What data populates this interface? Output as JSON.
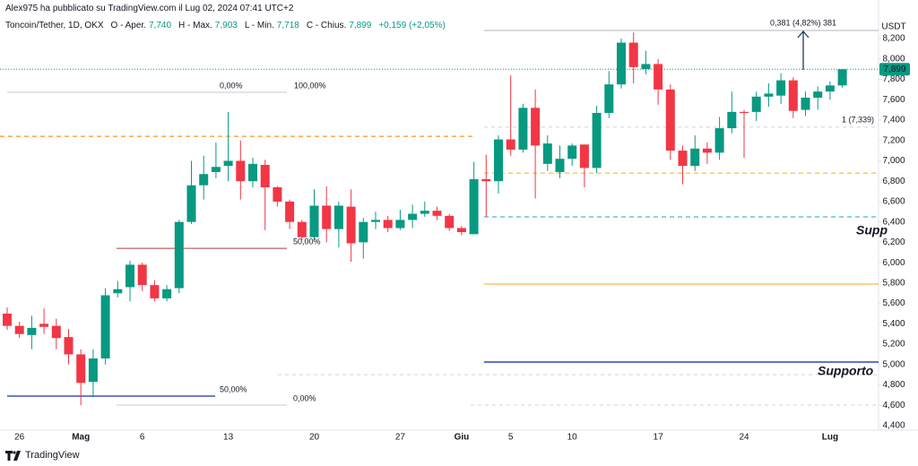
{
  "header": {
    "author": "Alex975 ha pubblicato su TradingView.com il Lug 02, 2024 07:41 UTC+2",
    "legend": [
      "Toncoin/Tether, 1D, OKX",
      "O - Aper.",
      "7,740",
      "H - Max.",
      "7,903",
      "L - Min.",
      "7,718",
      "C - Chius.",
      "7,899",
      "+0,159 (+2,05%)"
    ]
  },
  "footer": "TradingView",
  "chart_data": {
    "type": "candlestick",
    "y_unit": "USDT",
    "categories": [
      null,
      "26",
      null,
      null,
      null,
      null,
      "Mag",
      null,
      null,
      null,
      null,
      "6",
      null,
      null,
      null,
      null,
      null,
      null,
      "13",
      null,
      null,
      null,
      null,
      null,
      null,
      "20",
      null,
      null,
      null,
      null,
      null,
      null,
      "27",
      null,
      null,
      null,
      null,
      "Giu",
      null,
      null,
      null,
      "5",
      null,
      null,
      null,
      null,
      "10",
      null,
      null,
      null,
      null,
      null,
      null,
      "17",
      null,
      null,
      null,
      null,
      null,
      null,
      "24",
      null,
      null,
      null,
      null,
      null,
      null,
      "Lug",
      null
    ],
    "series": [
      {
        "name": "open",
        "values": [
          5500,
          5380,
          5290,
          5400,
          5380,
          5270,
          5100,
          4830,
          5060,
          5700,
          5760,
          5980,
          5780,
          5650,
          5750,
          6400,
          6760,
          6890,
          6950,
          7000,
          6800,
          6960,
          6740,
          6600,
          6400,
          6250,
          6560,
          6330,
          6550,
          6200,
          6400,
          6420,
          6340,
          6420,
          6480,
          6510,
          6460,
          6340,
          6280,
          6820,
          6800,
          7210,
          7110,
          7520,
          6970,
          6890,
          7020,
          7160,
          6930,
          7470,
          7750,
          8160,
          7900,
          7950,
          7700,
          7100,
          6950,
          7120,
          7080,
          7320,
          7480,
          7480,
          7630,
          7640,
          7790,
          7500,
          7620,
          7680,
          7740
        ]
      },
      {
        "name": "high",
        "values": [
          5560,
          5420,
          5480,
          5550,
          5450,
          5350,
          5150,
          5150,
          5750,
          5820,
          6020,
          6000,
          5830,
          5780,
          6420,
          7000,
          7050,
          7180,
          7480,
          7200,
          7030,
          7010,
          6750,
          6620,
          6420,
          6720,
          6750,
          6600,
          6720,
          6440,
          6500,
          6460,
          6520,
          6570,
          6600,
          6550,
          6480,
          6360,
          6990,
          7060,
          7250,
          7840,
          7560,
          7700,
          7250,
          7150,
          7170,
          7160,
          7540,
          7880,
          8200,
          8260,
          8080,
          8000,
          7750,
          7150,
          7250,
          7180,
          7430,
          7680,
          7500,
          7680,
          7760,
          7860,
          7820,
          7680,
          7730,
          7780,
          7903
        ]
      },
      {
        "name": "low",
        "values": [
          5340,
          5260,
          5150,
          5300,
          5150,
          5000,
          4600,
          4680,
          5000,
          5660,
          5620,
          5720,
          5620,
          5620,
          5700,
          6380,
          6620,
          6830,
          6800,
          6620,
          6740,
          6320,
          6550,
          6330,
          6220,
          6220,
          6200,
          6150,
          6010,
          6040,
          6330,
          6300,
          6320,
          6340,
          6450,
          6420,
          6310,
          6270,
          6280,
          6450,
          6680,
          7050,
          7080,
          6630,
          6900,
          6830,
          6950,
          6740,
          6880,
          7420,
          7710,
          7760,
          7850,
          7550,
          7010,
          6770,
          6900,
          6970,
          7010,
          7270,
          7030,
          7390,
          7530,
          7560,
          7420,
          7440,
          7500,
          7600,
          7718
        ]
      },
      {
        "name": "close",
        "values": [
          5380,
          5300,
          5360,
          5370,
          5260,
          5100,
          4820,
          5060,
          5680,
          5740,
          5980,
          5780,
          5650,
          5740,
          6400,
          6760,
          6870,
          6940,
          7000,
          6800,
          6970,
          6740,
          6600,
          6400,
          6250,
          6560,
          6330,
          6560,
          6190,
          6400,
          6420,
          6340,
          6420,
          6480,
          6510,
          6460,
          6340,
          6300,
          6820,
          6800,
          7210,
          7110,
          7520,
          7150,
          7170,
          7020,
          7150,
          6930,
          7470,
          7750,
          8160,
          7920,
          7950,
          7700,
          7100,
          6950,
          7120,
          7080,
          7320,
          7480,
          7470,
          7630,
          7660,
          7790,
          7490,
          7620,
          7680,
          7740,
          7899
        ]
      }
    ],
    "up_color": "#089981",
    "down_color": "#f23645",
    "last_price": 7899,
    "last_price_label": "7,899",
    "ylim": [
      4350,
      8400
    ],
    "yticks": [
      {
        "value": 4400,
        "label": "4,400"
      },
      {
        "value": 4600,
        "label": "4,600"
      },
      {
        "value": 4800,
        "label": "4,800"
      },
      {
        "value": 5000,
        "label": "5,000"
      },
      {
        "value": 5200,
        "label": "5,200"
      },
      {
        "value": 5400,
        "label": "5,400"
      },
      {
        "value": 5600,
        "label": "5,600"
      },
      {
        "value": 5800,
        "label": "5,800"
      },
      {
        "value": 6000,
        "label": "6,000"
      },
      {
        "value": 6200,
        "label": "6,200"
      },
      {
        "value": 6400,
        "label": "6,400"
      },
      {
        "value": 6600,
        "label": "6,600"
      },
      {
        "value": 6800,
        "label": "6,800"
      },
      {
        "value": 7000,
        "label": "7,000"
      },
      {
        "value": 7200,
        "label": "7,200"
      },
      {
        "value": 7400,
        "label": "7,400"
      },
      {
        "value": 7600,
        "label": "7,600"
      },
      {
        "value": 7800,
        "label": "7,800"
      },
      {
        "value": 8000,
        "label": "8,000"
      },
      {
        "value": 8200,
        "label": "8,200"
      }
    ],
    "lines": [
      {
        "value": 7240,
        "color": "#f57c00",
        "dash": "5 4"
      },
      {
        "value": 8280,
        "color": "#b2b5be",
        "dash": "none"
      },
      {
        "value": 7672,
        "color": "#c8cad0",
        "dash": "none"
      },
      {
        "value": 6141,
        "color": "#b23c3c",
        "dash": "none"
      },
      {
        "value": 4690,
        "color": "#3f51b5",
        "dash": "none"
      },
      {
        "value": 4602,
        "color": "#c8cad0",
        "dash": "none"
      },
      {
        "value": 6880,
        "color": "#f5b400",
        "dash": "5 4"
      },
      {
        "value": 6450,
        "color": "#26a6b9",
        "dash": "5 4"
      },
      {
        "value": 5790,
        "color": "#f5a623",
        "dash": "none"
      },
      {
        "value": 5025,
        "color": "#2e47b8",
        "dash": "none"
      },
      {
        "value": 4900,
        "color": "#d1d4dc",
        "dash": "4 4"
      },
      {
        "value": 4602,
        "color": "#d1d4dc",
        "dash": "4 4"
      },
      {
        "value": 7330,
        "color": "#d1d4dc",
        "dash": "4 4"
      }
    ],
    "annotations": [
      "0,00%",
      "100,00%",
      "50,00%",
      "50,00%",
      "0,00%",
      "Supp",
      "Supporto",
      "1 (7,339)",
      "0,381 (4,82%) 381"
    ]
  }
}
